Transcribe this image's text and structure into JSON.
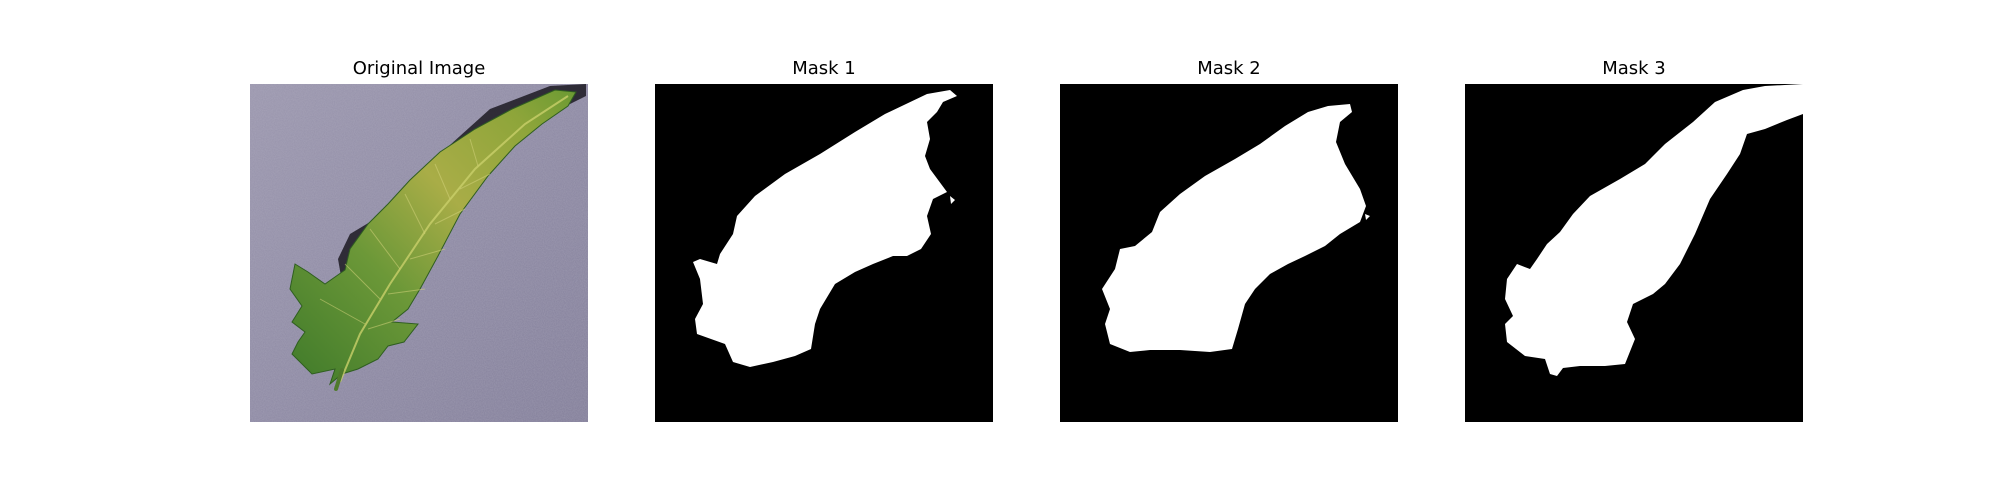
{
  "panels": [
    {
      "title": "Original Image",
      "kind": "photo"
    },
    {
      "title": "Mask 1",
      "kind": "mask"
    },
    {
      "title": "Mask 2",
      "kind": "mask"
    },
    {
      "title": "Mask 3",
      "kind": "mask"
    }
  ],
  "colors": {
    "figure_background": "#ffffff",
    "mask_background": "#000000",
    "mask_foreground": "#ffffff",
    "photo_background": "#8f8aa3",
    "leaf_dark_green": "#4f7f2e",
    "leaf_yellow_green": "#b7b44a"
  }
}
